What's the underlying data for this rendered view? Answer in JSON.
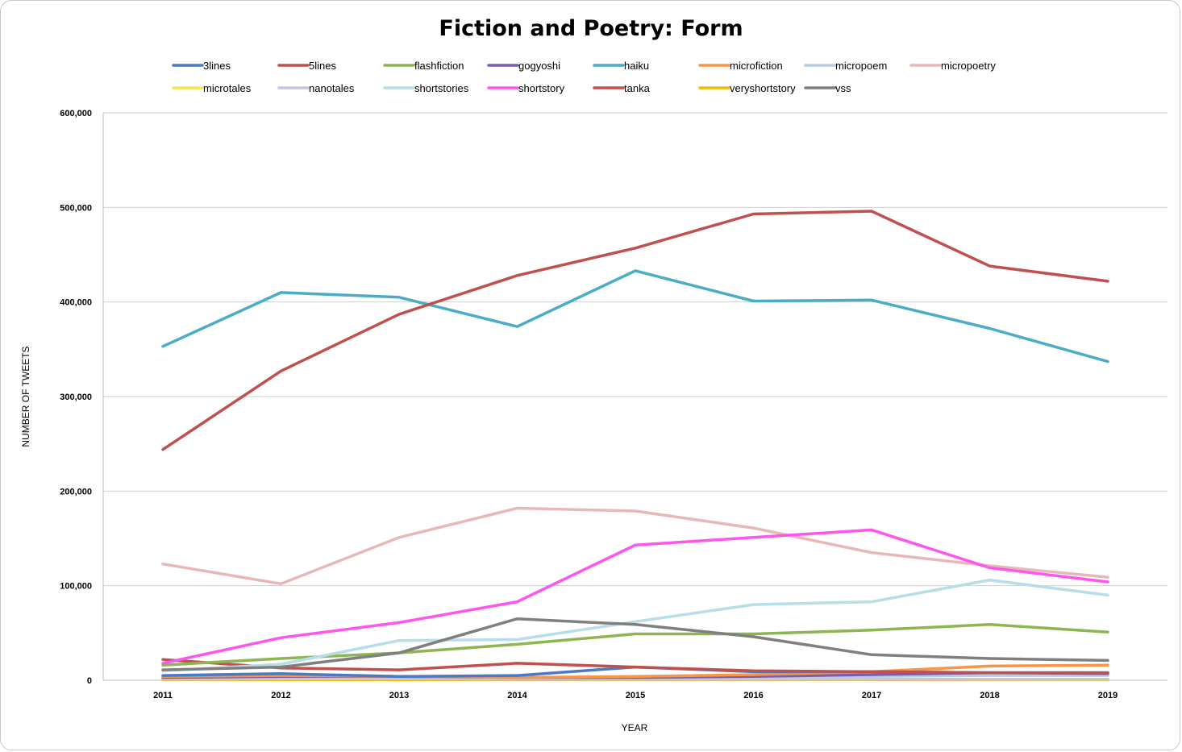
{
  "chart_data": {
    "type": "line",
    "title": "Fiction and Poetry: Form",
    "xlabel": "YEAR",
    "ylabel": "NUMBER OF TWEETS",
    "ylim": [
      0,
      600000
    ],
    "y_ticks": [
      0,
      100000,
      200000,
      300000,
      400000,
      500000,
      600000
    ],
    "y_tick_labels": [
      "0",
      "100,000",
      "200,000",
      "300,000",
      "400,000",
      "500,000",
      "600,000"
    ],
    "categories": [
      "2011",
      "2012",
      "2013",
      "2014",
      "2015",
      "2016",
      "2017",
      "2018",
      "2019"
    ],
    "grid": true,
    "legend_position": "top",
    "series": [
      {
        "name": "3lines",
        "color": "#4a7ac4",
        "values": [
          5000,
          7000,
          4000,
          5000,
          14000,
          9000,
          9000,
          8000,
          8000
        ]
      },
      {
        "name": "5lines",
        "color": "#c0504d",
        "values": [
          244000,
          327000,
          387000,
          428000,
          457000,
          493000,
          496000,
          438000,
          422000
        ]
      },
      {
        "name": "flashfiction",
        "color": "#8db653",
        "values": [
          16000,
          23000,
          29000,
          38000,
          49000,
          49000,
          53000,
          59000,
          51000
        ]
      },
      {
        "name": "gogyoshi",
        "color": "#7b5ea7",
        "values": [
          3000,
          4000,
          4000,
          3000,
          3000,
          4000,
          6000,
          8000,
          7000
        ]
      },
      {
        "name": "haiku",
        "color": "#4bacc6",
        "values": [
          353000,
          410000,
          405000,
          374000,
          433000,
          401000,
          402000,
          372000,
          337000
        ]
      },
      {
        "name": "microfiction",
        "color": "#f79646",
        "values": [
          4000,
          5000,
          4000,
          3000,
          4000,
          6000,
          9000,
          15000,
          16000
        ]
      },
      {
        "name": "micropoem",
        "color": "#b8cce4",
        "values": [
          2000,
          3000,
          3000,
          2000,
          2000,
          3000,
          4000,
          5000,
          5000
        ]
      },
      {
        "name": "micropoetry",
        "color": "#e6b9b8",
        "values": [
          123000,
          102000,
          151000,
          182000,
          179000,
          161000,
          135000,
          121000,
          109000
        ]
      },
      {
        "name": "microtales",
        "color": "#f5e94a",
        "values": [
          1000,
          1000,
          1000,
          1000,
          1000,
          1000,
          1000,
          1000,
          1000
        ]
      },
      {
        "name": "nanotales",
        "color": "#c9c3db",
        "values": [
          1000,
          1500,
          1500,
          1000,
          1000,
          1000,
          1000,
          1000,
          1000
        ]
      },
      {
        "name": "shortstories",
        "color": "#b7dde8",
        "values": [
          10000,
          17000,
          42000,
          43000,
          62000,
          80000,
          83000,
          106000,
          90000
        ]
      },
      {
        "name": "shortstory",
        "color": "#ff55ee",
        "values": [
          18000,
          45000,
          61000,
          83000,
          143000,
          151000,
          159000,
          119000,
          104000
        ]
      },
      {
        "name": "tanka",
        "color": "#c0504d",
        "values": [
          22000,
          13000,
          11000,
          18000,
          14000,
          10000,
          9000,
          8000,
          8000
        ]
      },
      {
        "name": "veryshortstory",
        "color": "#f2bd00",
        "values": [
          500,
          500,
          500,
          500,
          500,
          500,
          500,
          500,
          500
        ]
      },
      {
        "name": "vss",
        "color": "#7f7f7f",
        "values": [
          11000,
          14000,
          29000,
          65000,
          59000,
          46000,
          27000,
          23000,
          21000
        ]
      }
    ]
  }
}
